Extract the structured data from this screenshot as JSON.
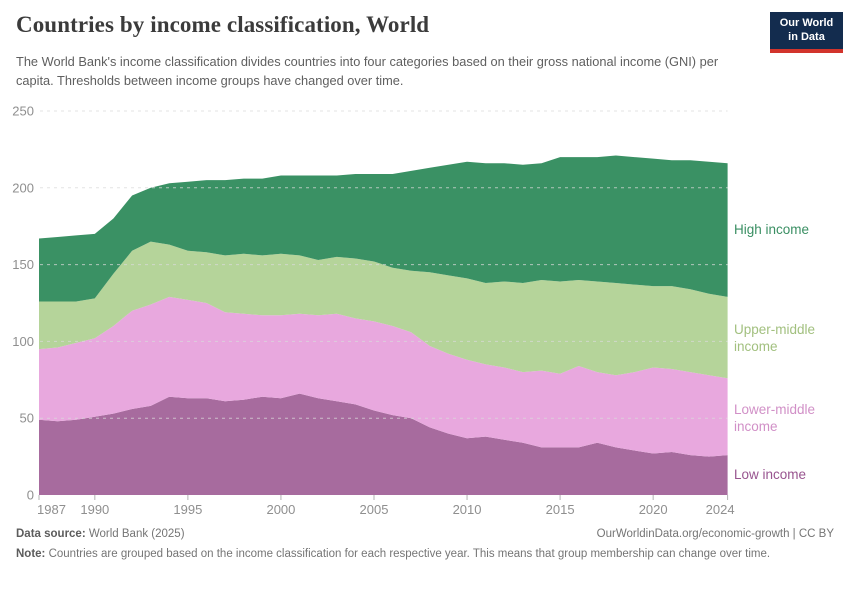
{
  "header": {
    "title": "Countries by income classification, World",
    "subtitle": "The World Bank's income classification divides countries into four categories based on their gross national income (GNI) per capita. Thresholds between income groups have changed over time.",
    "logo": {
      "line1": "Our World",
      "line2": "in Data"
    }
  },
  "chart_data": {
    "type": "area",
    "stacked": true,
    "title": "Countries by income classification, World",
    "xlabel": "",
    "ylabel": "",
    "ylim": [
      0,
      250
    ],
    "yticks": [
      0,
      50,
      100,
      150,
      200,
      250
    ],
    "xticks": [
      1987,
      1990,
      1995,
      2000,
      2005,
      2010,
      2015,
      2020,
      2024
    ],
    "grid": "horizontal-dashed",
    "legend_position": "right-edge-of-plot",
    "x": [
      1987,
      1988,
      1989,
      1990,
      1991,
      1992,
      1993,
      1994,
      1995,
      1996,
      1997,
      1998,
      1999,
      2000,
      2001,
      2002,
      2003,
      2004,
      2005,
      2006,
      2007,
      2008,
      2009,
      2010,
      2011,
      2012,
      2013,
      2014,
      2015,
      2016,
      2017,
      2018,
      2019,
      2020,
      2021,
      2022,
      2023,
      2024
    ],
    "series": [
      {
        "name": "Low income",
        "color": "#a76b9e",
        "label_color": "#98548f",
        "values": [
          49,
          48,
          49,
          51,
          53,
          56,
          58,
          64,
          63,
          63,
          61,
          62,
          64,
          63,
          66,
          63,
          61,
          59,
          55,
          52,
          50,
          44,
          40,
          37,
          38,
          36,
          34,
          31,
          31,
          31,
          34,
          31,
          29,
          27,
          28,
          26,
          25,
          26
        ]
      },
      {
        "name": "Lower-middle income",
        "color": "#e8a8de",
        "label_color": "#d190c7",
        "values": [
          46,
          48,
          50,
          51,
          57,
          64,
          66,
          65,
          64,
          62,
          58,
          56,
          53,
          54,
          52,
          54,
          57,
          56,
          58,
          58,
          56,
          53,
          52,
          51,
          47,
          47,
          46,
          50,
          48,
          53,
          46,
          47,
          51,
          56,
          54,
          54,
          53,
          50
        ]
      },
      {
        "name": "Upper-middle income",
        "color": "#b5d49a",
        "label_color": "#a2c07f",
        "values": [
          31,
          30,
          27,
          26,
          34,
          39,
          41,
          34,
          32,
          33,
          37,
          39,
          39,
          40,
          38,
          36,
          37,
          39,
          39,
          38,
          40,
          48,
          51,
          53,
          53,
          56,
          58,
          59,
          60,
          56,
          59,
          60,
          57,
          53,
          54,
          54,
          53,
          53
        ]
      },
      {
        "name": "High income",
        "color": "#3a9164",
        "label_color": "#3a8f63",
        "values": [
          41,
          42,
          43,
          42,
          36,
          36,
          35,
          40,
          45,
          47,
          49,
          49,
          50,
          51,
          52,
          55,
          53,
          55,
          57,
          61,
          65,
          68,
          72,
          76,
          78,
          77,
          77,
          76,
          81,
          80,
          81,
          83,
          83,
          83,
          82,
          84,
          86,
          87
        ]
      }
    ],
    "axis_color": "#8f8f8f",
    "gridline_color": "#dadada"
  },
  "footer": {
    "source_label": "Data source:",
    "source_value": " World Bank (2025)",
    "attribution": "OurWorldinData.org/economic-growth | CC BY",
    "note_label": "Note:",
    "note_value": " Countries are grouped based on the income classification for each respective year. This means that group membership can change over time."
  }
}
